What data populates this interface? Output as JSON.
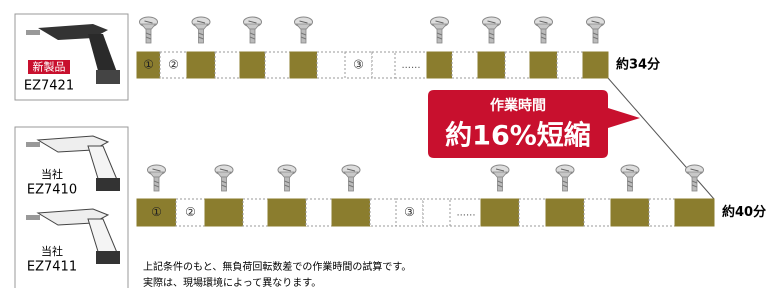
{
  "products": [
    {
      "tag": "新製品",
      "model": "EZ7421"
    },
    {
      "maker": "当社",
      "model": "EZ7410"
    },
    {
      "maker": "当社",
      "model": "EZ7411"
    }
  ],
  "strips": [
    {
      "markers": [
        "①",
        "②",
        "③"
      ],
      "ellipsis": "......",
      "time": "約34分"
    },
    {
      "markers": [
        "①",
        "②",
        "③"
      ],
      "ellipsis": "......",
      "time": "約40分"
    }
  ],
  "callout": {
    "label": "作業時間",
    "value": "約16%短縮"
  },
  "caption": [
    "上記条件のもと、無負荷回転数差での作業時間の試算です。",
    "実際は、現場環境によって異なります。"
  ]
}
